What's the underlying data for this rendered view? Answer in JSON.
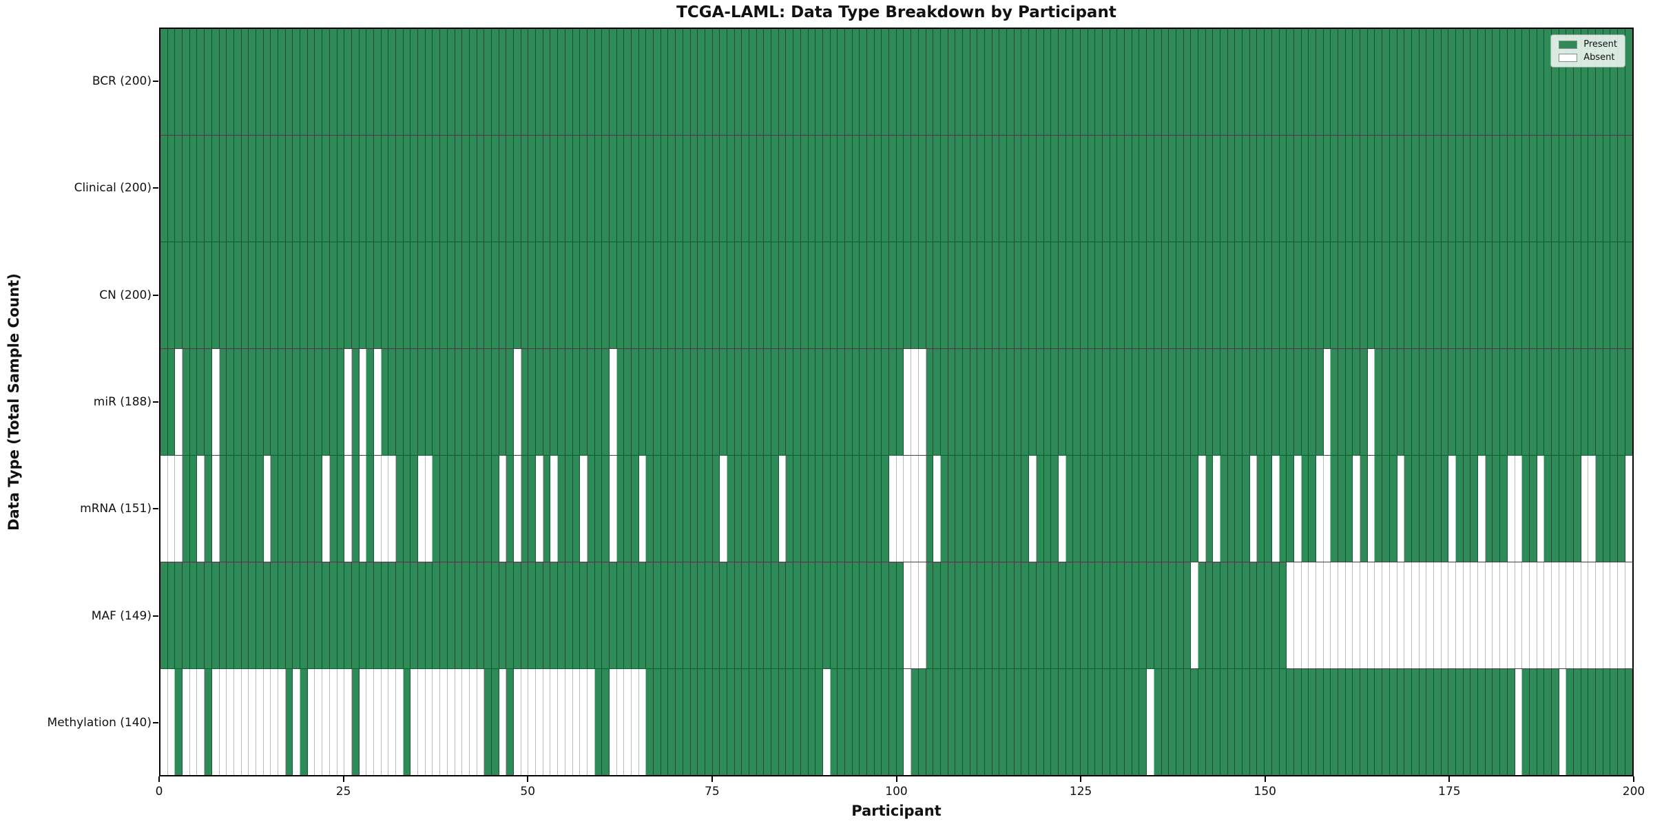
{
  "chart_data": {
    "type": "heatmap",
    "title": "TCGA-LAML: Data Type Breakdown by Participant",
    "xlabel": "Participant",
    "ylabel": "Data Type (Total Sample Count)",
    "n_participants": 200,
    "x_ticks": [
      0,
      25,
      50,
      75,
      100,
      125,
      150,
      175,
      200
    ],
    "grid": "cell-borders",
    "legend_position": "upper-right",
    "colors": {
      "present": "#2e8b57",
      "absent": "#ffffff",
      "axis": "#000000"
    },
    "legend": [
      {
        "label": "Present",
        "color": "#2e8b57"
      },
      {
        "label": "Absent",
        "color": "#ffffff"
      }
    ],
    "rows": [
      {
        "name": "BCR",
        "label": "BCR (200)",
        "present_count": 200,
        "absent": []
      },
      {
        "name": "Clinical",
        "label": "Clinical (200)",
        "present_count": 200,
        "absent": []
      },
      {
        "name": "CN",
        "label": "CN (200)",
        "present_count": 200,
        "absent": []
      },
      {
        "name": "miR",
        "label": "miR (188)",
        "present_count": 188,
        "absent": [
          2,
          7,
          25,
          27,
          29,
          48,
          61,
          101,
          102,
          103,
          158,
          164
        ]
      },
      {
        "name": "mRNA",
        "label": "mRNA (151)",
        "present_count": 151,
        "absent": [
          0,
          1,
          2,
          5,
          7,
          14,
          22,
          25,
          27,
          29,
          30,
          31,
          35,
          36,
          46,
          48,
          51,
          53,
          57,
          61,
          65,
          76,
          84,
          99,
          100,
          101,
          102,
          103,
          105,
          118,
          122,
          141,
          143,
          148,
          151,
          154,
          157,
          158,
          162,
          164,
          168,
          175,
          179,
          183,
          184,
          187,
          193,
          194,
          199
        ]
      },
      {
        "name": "MAF",
        "label": "MAF (149)",
        "present_count": 149,
        "absent": [
          101,
          102,
          103,
          140,
          153,
          154,
          155,
          156,
          157,
          158,
          159,
          160,
          161,
          162,
          163,
          164,
          165,
          166,
          167,
          168,
          169,
          170,
          171,
          172,
          173,
          174,
          175,
          176,
          177,
          178,
          179,
          180,
          181,
          182,
          183,
          184,
          185,
          186,
          187,
          188,
          189,
          190,
          191,
          192,
          193,
          194,
          195,
          196,
          197,
          198,
          199
        ]
      },
      {
        "name": "Methylation",
        "label": "Methylation (140)",
        "present_count": 140,
        "absent": [
          0,
          1,
          3,
          4,
          5,
          7,
          8,
          9,
          10,
          11,
          12,
          13,
          14,
          15,
          16,
          18,
          20,
          21,
          22,
          23,
          24,
          25,
          27,
          28,
          29,
          30,
          31,
          32,
          34,
          35,
          36,
          37,
          38,
          39,
          40,
          41,
          42,
          43,
          46,
          48,
          49,
          50,
          51,
          52,
          53,
          54,
          55,
          56,
          57,
          58,
          61,
          62,
          63,
          64,
          65,
          90,
          101,
          134,
          184,
          190
        ]
      }
    ]
  }
}
